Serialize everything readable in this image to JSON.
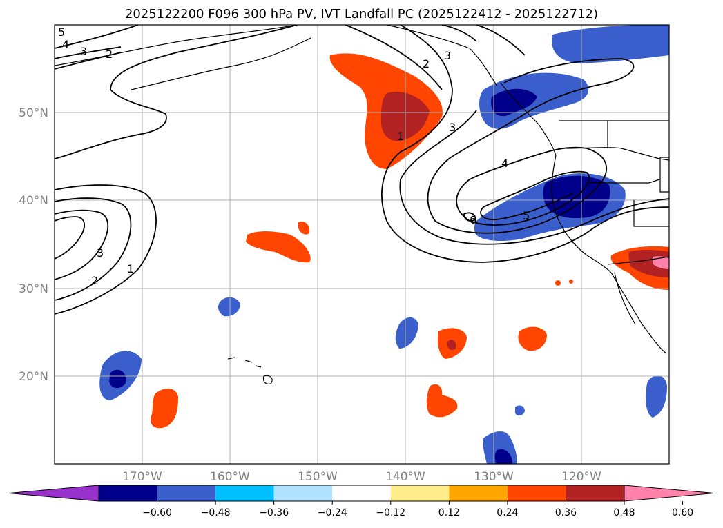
{
  "title": "2025122200 F096 300 hPa PV, IVT Landfall PC (2025122412 - 2025122712)",
  "lat_labels": [
    "50°N",
    "40°N",
    "30°N",
    "20°N"
  ],
  "lon_labels": [
    "170°W",
    "160°W",
    "150°W",
    "140°W",
    "130°W",
    "120°W"
  ],
  "colorbar": {
    "ticks": [
      "−0.60",
      "−0.48",
      "−0.36",
      "−0.24",
      "−0.12",
      "0.12",
      "0.24",
      "0.36",
      "0.48",
      "0.60"
    ],
    "colors": [
      "#9932cc",
      "#00008b",
      "#3a5fcd",
      "#00bfff",
      "#b0e2ff",
      "#ffffff",
      "#ffec8b",
      "#ffa500",
      "#ff4500",
      "#b22222",
      "#ff82ab"
    ]
  },
  "contour_labels": [
    "5",
    "4",
    "3",
    "2",
    "2",
    "3",
    "1",
    "3",
    "4",
    "5",
    "6",
    "3",
    "2",
    "1"
  ],
  "colors": {
    "land_outline": "#000000",
    "grid": "#b0b0b0",
    "contour": "#000000"
  }
}
